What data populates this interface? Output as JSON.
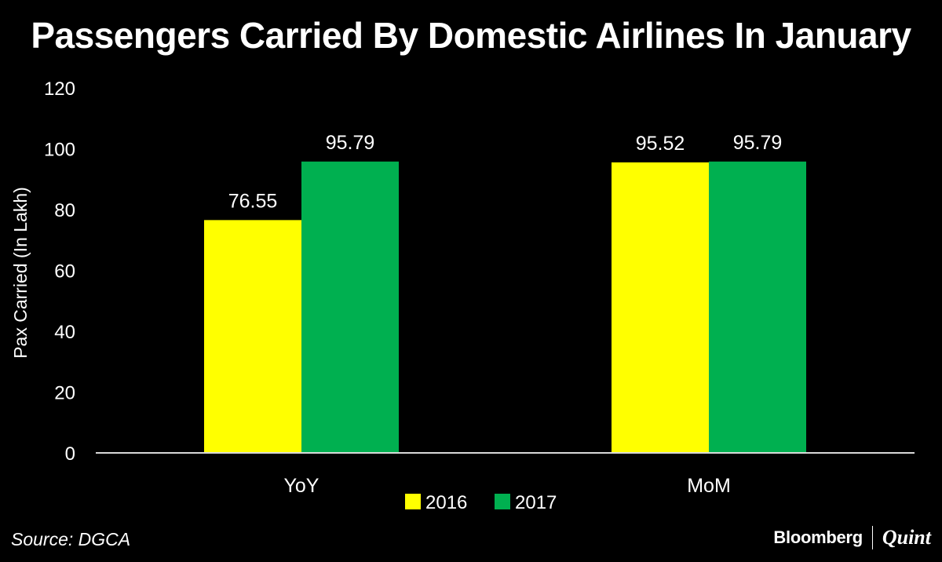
{
  "brand": {
    "source": "Source: DGCA",
    "logo_left": "Bloomberg",
    "logo_right": "Quint"
  },
  "colors": {
    "background": "#000000",
    "text": "#ffffff",
    "series_2016": "#ffff00",
    "series_2017": "#00b050"
  },
  "chart_data": {
    "type": "bar",
    "title": "Passengers Carried By Domestic Airlines In January",
    "xlabel": "",
    "ylabel": "Pax Carried (In Lakh)",
    "categories": [
      "YoY",
      "MoM"
    ],
    "series": [
      {
        "name": "2016",
        "values": [
          76.55,
          95.52
        ],
        "labels": [
          "76.55",
          "95.52"
        ]
      },
      {
        "name": "2017",
        "values": [
          95.79,
          95.79
        ],
        "labels": [
          "95.79",
          "95.79"
        ]
      }
    ],
    "ylim": [
      0,
      120
    ],
    "yticks": [
      0,
      20,
      40,
      60,
      80,
      100,
      120
    ],
    "grid": false,
    "legend": "bottom-center"
  }
}
